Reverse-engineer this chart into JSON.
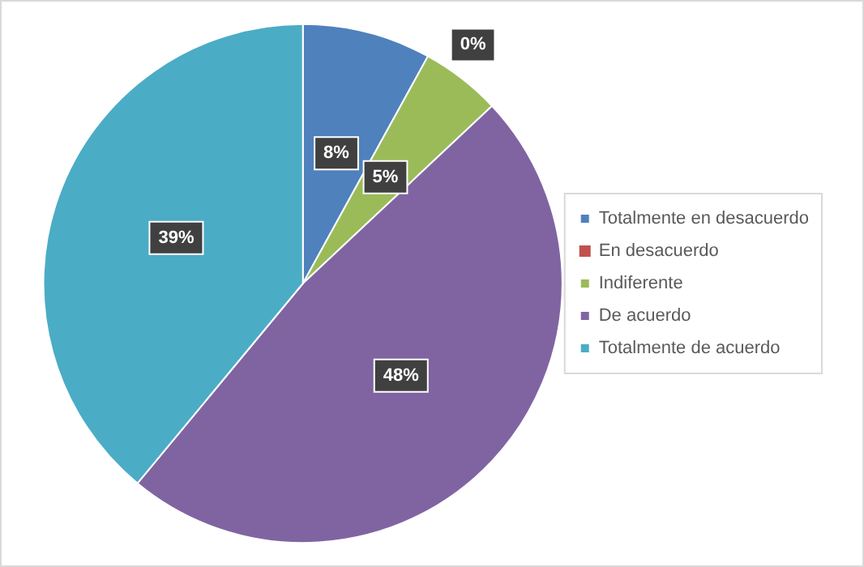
{
  "chart_data": {
    "type": "pie",
    "categories": [
      "Totalmente en desacuerdo",
      "En desacuerdo",
      "Indiferente",
      "De acuerdo",
      "Totalmente de acuerdo"
    ],
    "values": [
      8,
      0,
      5,
      48,
      39
    ],
    "colors": [
      "#4f81bd",
      "#c0504d",
      "#9bbb59",
      "#8064a2",
      "#4bacc6"
    ],
    "value_labels": [
      "8%",
      "0%",
      "5%",
      "48%",
      "39%"
    ],
    "legend": "right"
  }
}
